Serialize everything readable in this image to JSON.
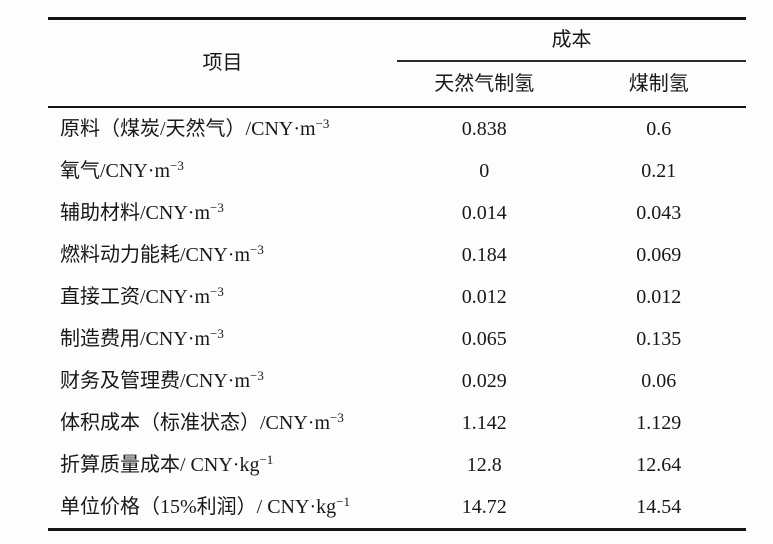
{
  "table": {
    "header": {
      "item": "项目",
      "cost_group": "成本",
      "columns": [
        "天然气制氢",
        "煤制氢"
      ]
    },
    "rows": [
      {
        "item": "原料（煤炭/天然气）/CNY·m",
        "sup": "−3",
        "values": [
          "0.838",
          "0.6"
        ]
      },
      {
        "item": "氧气/CNY·m",
        "sup": "−3",
        "values": [
          "0",
          "0.21"
        ]
      },
      {
        "item": "辅助材料/CNY·m",
        "sup": "−3",
        "values": [
          "0.014",
          "0.043"
        ]
      },
      {
        "item": "燃料动力能耗/CNY·m",
        "sup": "−3",
        "values": [
          "0.184",
          "0.069"
        ]
      },
      {
        "item": "直接工资/CNY·m",
        "sup": "−3",
        "values": [
          "0.012",
          "0.012"
        ]
      },
      {
        "item": "制造费用/CNY·m",
        "sup": "−3",
        "values": [
          "0.065",
          "0.135"
        ]
      },
      {
        "item": "财务及管理费/CNY·m",
        "sup": "−3",
        "values": [
          "0.029",
          "0.06"
        ]
      },
      {
        "item": "体积成本（标准状态）/CNY·m",
        "sup": "−3",
        "values": [
          "1.142",
          "1.129"
        ]
      },
      {
        "item": "折算质量成本/ CNY·kg",
        "sup": "−1",
        "values": [
          "12.8",
          "12.64"
        ]
      },
      {
        "item": "单位价格（15%利润）/ CNY·kg",
        "sup": "−1",
        "values": [
          "14.72",
          "14.54"
        ]
      }
    ]
  },
  "chart_data": {
    "type": "table",
    "title": "",
    "columns": [
      "项目",
      "成本 / 天然气制氢",
      "成本 / 煤制氢"
    ],
    "rows": [
      [
        "原料（煤炭/天然气）/CNY·m−3",
        0.838,
        0.6
      ],
      [
        "氧气/CNY·m−3",
        0,
        0.21
      ],
      [
        "辅助材料/CNY·m−3",
        0.014,
        0.043
      ],
      [
        "燃料动力能耗/CNY·m−3",
        0.184,
        0.069
      ],
      [
        "直接工资/CNY·m−3",
        0.012,
        0.012
      ],
      [
        "制造费用/CNY·m−3",
        0.065,
        0.135
      ],
      [
        "财务及管理费/CNY·m−3",
        0.029,
        0.06
      ],
      [
        "体积成本（标准状态）/CNY·m−3",
        1.142,
        1.129
      ],
      [
        "折算质量成本/ CNY·kg−1",
        12.8,
        12.64
      ],
      [
        "单位价格（15%利润）/ CNY·kg−1",
        14.72,
        14.54
      ]
    ]
  },
  "colors": {
    "background": "#fdfdfd",
    "text": "#181818",
    "rule": "#161616"
  }
}
